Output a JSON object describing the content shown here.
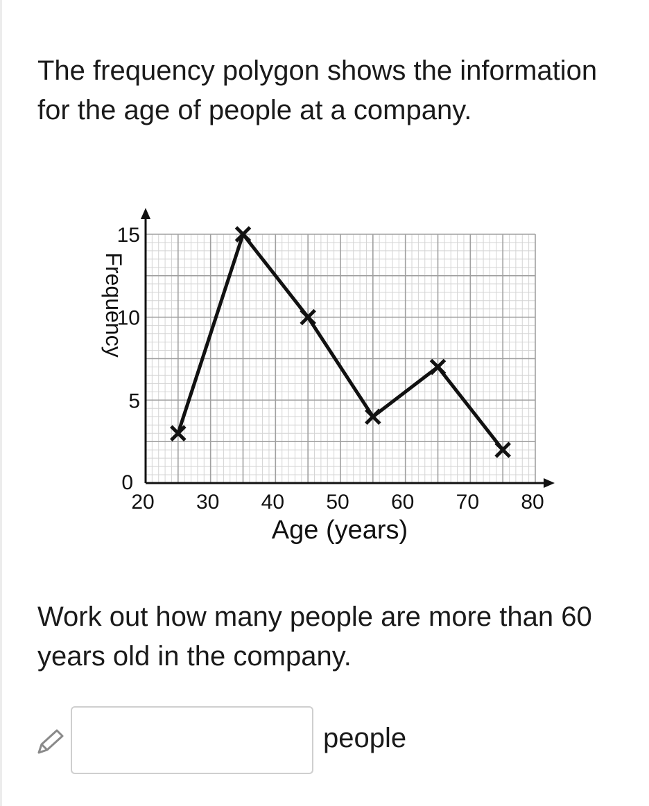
{
  "question": {
    "intro": "The frequency polygon shows the information for the age of people at a company.",
    "task": "Work out how many people are more than 60 years old in the company."
  },
  "answer": {
    "value": "",
    "unit": "people"
  },
  "icons": {
    "edit": "pencil-icon"
  },
  "chart_data": {
    "type": "line",
    "title": "",
    "xlabel": "Age (years)",
    "ylabel": "Frequency",
    "xlim": [
      20,
      80
    ],
    "ylim": [
      0,
      15
    ],
    "x_ticks": [
      20,
      30,
      40,
      50,
      60,
      70,
      80
    ],
    "y_ticks": [
      0,
      5,
      10,
      15
    ],
    "x_tick_labels": [
      "20",
      "30",
      "40",
      "50",
      "60",
      "70",
      "80"
    ],
    "y_tick_labels": [
      "0",
      "5",
      "10",
      "15"
    ],
    "grid": true,
    "marker": "x",
    "series": [
      {
        "x": [
          25,
          35,
          45,
          55,
          65,
          75
        ],
        "y": [
          3,
          15,
          10,
          4,
          7,
          2
        ]
      }
    ],
    "colors": {
      "line": "#111111",
      "grid_major": "#a0a0a0",
      "grid_minor": "#d4d4d4"
    }
  }
}
